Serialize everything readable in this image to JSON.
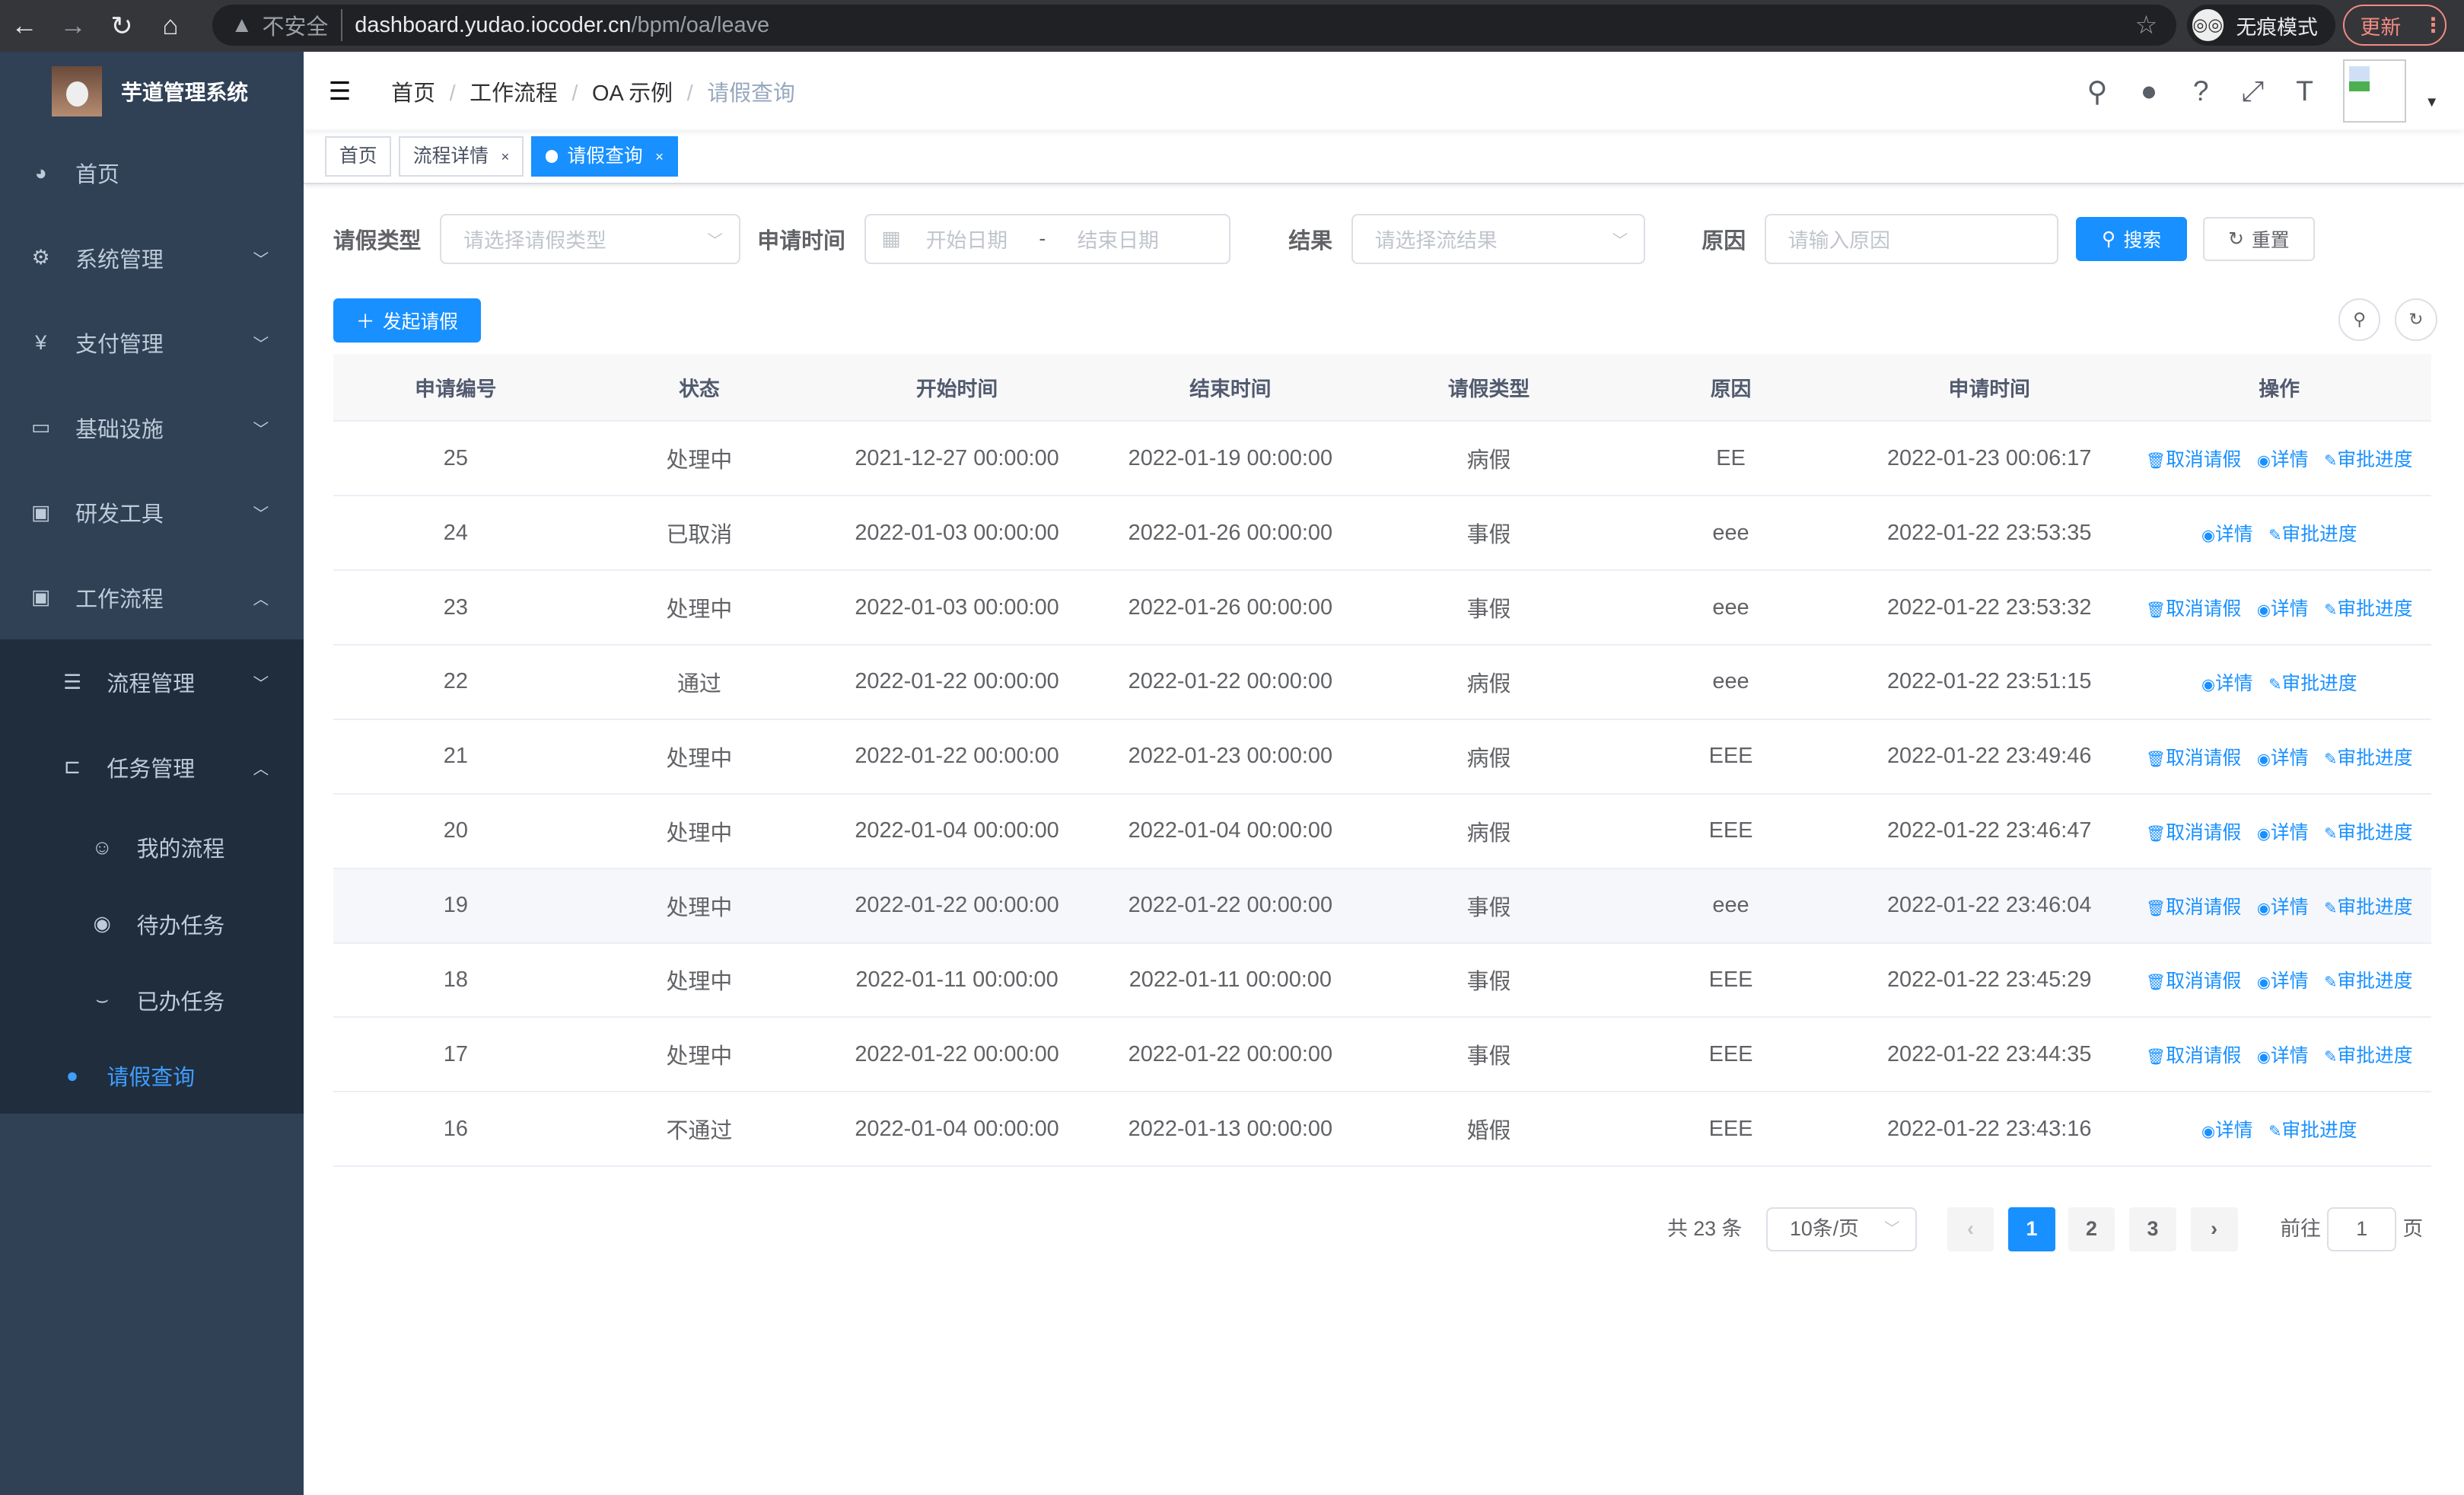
{
  "browser": {
    "insecure": "不安全",
    "url_host": "dashboard.yudao.iocoder.cn",
    "url_path": "/bpm/oa/leave",
    "incognito": "无痕模式",
    "update": "更新"
  },
  "sidebar": {
    "title": "芋道管理系统",
    "items": [
      {
        "label": "首页",
        "icon": "dashboard-icon"
      },
      {
        "label": "系统管理",
        "icon": "gear-icon"
      },
      {
        "label": "支付管理",
        "icon": "yen-icon"
      },
      {
        "label": "基础设施",
        "icon": "monitor-icon"
      },
      {
        "label": "研发工具",
        "icon": "toolbox-icon"
      },
      {
        "label": "工作流程",
        "icon": "toolbox-icon"
      }
    ],
    "workflow": [
      {
        "label": "流程管理"
      },
      {
        "label": "任务管理"
      }
    ],
    "tasks": [
      {
        "label": "我的流程"
      },
      {
        "label": "待办任务"
      },
      {
        "label": "已办任务"
      }
    ],
    "active": {
      "label": "请假查询"
    }
  },
  "breadcrumb": [
    "首页",
    "工作流程",
    "OA 示例",
    "请假查询"
  ],
  "tags": [
    "首页",
    "流程详情",
    "请假查询"
  ],
  "form": {
    "type_label": "请假类型",
    "type_placeholder": "请选择请假类型",
    "time_label": "申请时间",
    "start_placeholder": "开始日期",
    "dash": "-",
    "end_placeholder": "结束日期",
    "result_label": "结果",
    "result_placeholder": "请选择流结果",
    "reason_label": "原因",
    "reason_placeholder": "请输入原因",
    "search": "搜索",
    "reset": "重置"
  },
  "add_button": "发起请假",
  "table": {
    "headers": [
      "申请编号",
      "状态",
      "开始时间",
      "结束时间",
      "请假类型",
      "原因",
      "申请时间",
      "操作"
    ],
    "actions": {
      "cancel": "取消请假",
      "detail": "详情",
      "progress": "审批进度"
    },
    "rows": [
      [
        "25",
        "处理中",
        "2021-12-27 00:00:00",
        "2022-01-19 00:00:00",
        "病假",
        "EE",
        "2022-01-23 00:06:17",
        true
      ],
      [
        "24",
        "已取消",
        "2022-01-03 00:00:00",
        "2022-01-26 00:00:00",
        "事假",
        "eee",
        "2022-01-22 23:53:35",
        false
      ],
      [
        "23",
        "处理中",
        "2022-01-03 00:00:00",
        "2022-01-26 00:00:00",
        "事假",
        "eee",
        "2022-01-22 23:53:32",
        true
      ],
      [
        "22",
        "通过",
        "2022-01-22 00:00:00",
        "2022-01-22 00:00:00",
        "病假",
        "eee",
        "2022-01-22 23:51:15",
        false
      ],
      [
        "21",
        "处理中",
        "2022-01-22 00:00:00",
        "2022-01-23 00:00:00",
        "病假",
        "EEE",
        "2022-01-22 23:49:46",
        true
      ],
      [
        "20",
        "处理中",
        "2022-01-04 00:00:00",
        "2022-01-04 00:00:00",
        "病假",
        "EEE",
        "2022-01-22 23:46:47",
        true
      ],
      [
        "19",
        "处理中",
        "2022-01-22 00:00:00",
        "2022-01-22 00:00:00",
        "事假",
        "eee",
        "2022-01-22 23:46:04",
        true
      ],
      [
        "18",
        "处理中",
        "2022-01-11 00:00:00",
        "2022-01-11 00:00:00",
        "事假",
        "EEE",
        "2022-01-22 23:45:29",
        true
      ],
      [
        "17",
        "处理中",
        "2022-01-22 00:00:00",
        "2022-01-22 00:00:00",
        "事假",
        "EEE",
        "2022-01-22 23:44:35",
        true
      ],
      [
        "16",
        "不通过",
        "2022-01-04 00:00:00",
        "2022-01-13 00:00:00",
        "婚假",
        "EEE",
        "2022-01-22 23:43:16",
        false
      ]
    ]
  },
  "pagination": {
    "total": "共 23 条",
    "page_size": "10条/页",
    "pages": [
      "1",
      "2",
      "3"
    ],
    "current": "1",
    "goto": "前往",
    "goto_value": "1",
    "page_unit": "页"
  },
  "colors": {
    "sidebar": "#304156",
    "submenu": "#1f2d3d",
    "primary": "#1890ff"
  }
}
